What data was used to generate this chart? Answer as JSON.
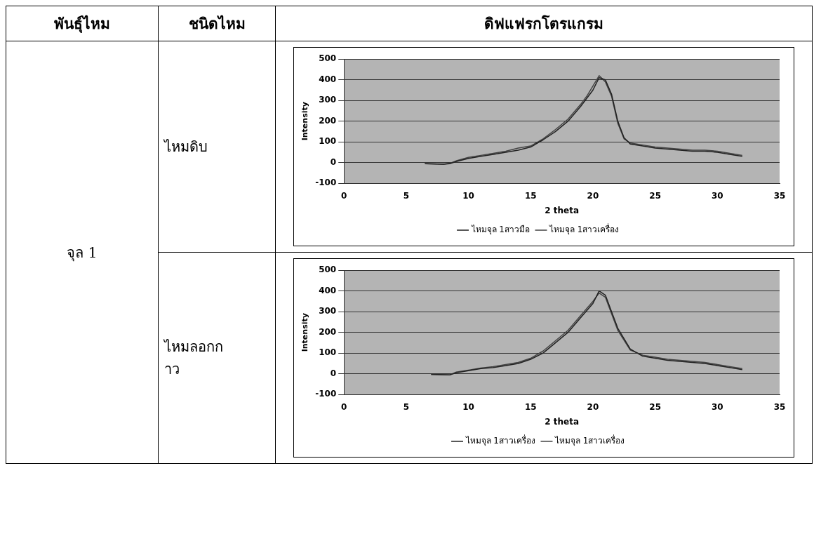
{
  "chart_data": [
    {
      "type": "line",
      "xlabel": "2 theta",
      "ylabel": "Intensity",
      "xlim": [
        0,
        35
      ],
      "xticks": [
        0,
        5,
        10,
        15,
        20,
        25,
        30,
        35
      ],
      "ylim": [
        -100,
        500
      ],
      "yticks": [
        -100,
        0,
        100,
        200,
        300,
        400,
        500
      ],
      "grid": "y",
      "legend": "bottom",
      "marker": "none",
      "line_style": "solid",
      "annotations": [
        "พันธุ์ไหม",
        "ชนิดไหม",
        "ดิฟแฟรกโตรแกรม",
        "จุล 1",
        "ไหมดิบ"
      ],
      "x": [
        6.5,
        8,
        8.5,
        9,
        10,
        11,
        12,
        13,
        14,
        15,
        16,
        17,
        18,
        19,
        19.5,
        20,
        20.5,
        21,
        21.5,
        22,
        22.5,
        23,
        24,
        25,
        26,
        27,
        28,
        29,
        30,
        31,
        32
      ],
      "series": [
        {
          "name": "ไหมจุล 1สาวมือ",
          "color": "#222222",
          "values": [
            -5,
            -8,
            -5,
            5,
            20,
            30,
            40,
            50,
            60,
            75,
            110,
            150,
            200,
            270,
            310,
            350,
            410,
            400,
            330,
            200,
            120,
            90,
            80,
            70,
            65,
            60,
            55,
            55,
            50,
            40,
            30
          ]
        },
        {
          "name": "ไหมจุล 1สาวเครื่อง",
          "color": "#444444",
          "values": [
            -5,
            -8,
            -3,
            8,
            25,
            35,
            45,
            55,
            70,
            80,
            115,
            160,
            210,
            280,
            320,
            370,
            420,
            390,
            320,
            190,
            115,
            95,
            85,
            75,
            70,
            65,
            60,
            60,
            55,
            45,
            35
          ]
        }
      ]
    },
    {
      "type": "line",
      "xlabel": "2 theta",
      "ylabel": "Intensity",
      "xlim": [
        0,
        35
      ],
      "xticks": [
        0,
        5,
        10,
        15,
        20,
        25,
        30,
        35
      ],
      "ylim": [
        -100,
        500
      ],
      "yticks": [
        -100,
        0,
        100,
        200,
        300,
        400,
        500
      ],
      "grid": "y",
      "legend": "bottom",
      "marker": "none",
      "line_style": "solid",
      "annotations": [
        "ไหมลอกกาว"
      ],
      "x": [
        7,
        8.5,
        9,
        10,
        11,
        12,
        13,
        14,
        15,
        16,
        17,
        18,
        19,
        20,
        20.5,
        21,
        21.5,
        22,
        23,
        24,
        25,
        26,
        27,
        28,
        29,
        30,
        31,
        32
      ],
      "series": [
        {
          "name": "ไหมจุล 1สาวเครื่อง",
          "color": "#222222",
          "values": [
            -3,
            -5,
            5,
            15,
            25,
            30,
            40,
            50,
            70,
            100,
            150,
            200,
            270,
            340,
            400,
            380,
            300,
            220,
            120,
            85,
            75,
            65,
            60,
            55,
            50,
            40,
            30,
            20
          ]
        },
        {
          "name": "ไหมจุล 1สาวเครื่อง",
          "color": "#444444",
          "values": [
            -3,
            -5,
            8,
            18,
            28,
            35,
            45,
            55,
            75,
            110,
            160,
            210,
            280,
            350,
            390,
            370,
            290,
            210,
            115,
            90,
            80,
            70,
            65,
            60,
            55,
            45,
            35,
            25
          ]
        }
      ]
    }
  ]
}
